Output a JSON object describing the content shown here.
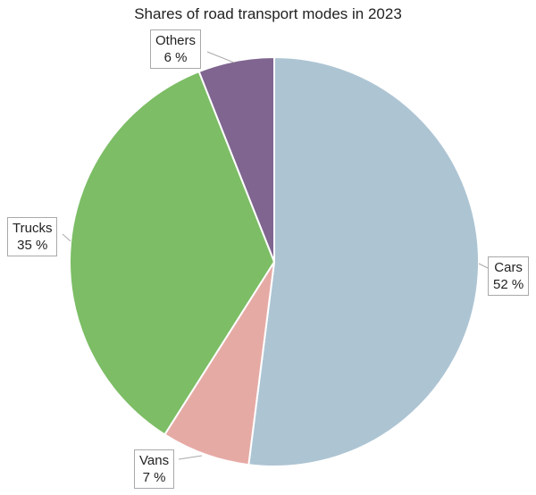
{
  "chart_data": {
    "type": "pie",
    "title": "Shares of road transport modes in 2023",
    "start_angle_deg": 0,
    "direction": "clockwise",
    "slices": [
      {
        "label": "Cars",
        "value": 52,
        "value_text": "52 %",
        "color": "#adc4d3"
      },
      {
        "label": "Vans",
        "value": 7,
        "value_text": "7 %",
        "color": "#e6aaa5"
      },
      {
        "label": "Trucks",
        "value": 35,
        "value_text": "35 %",
        "color": "#7cbd65"
      },
      {
        "label": "Others",
        "value": 6,
        "value_text": "6 %",
        "color": "#7f6590"
      }
    ]
  }
}
